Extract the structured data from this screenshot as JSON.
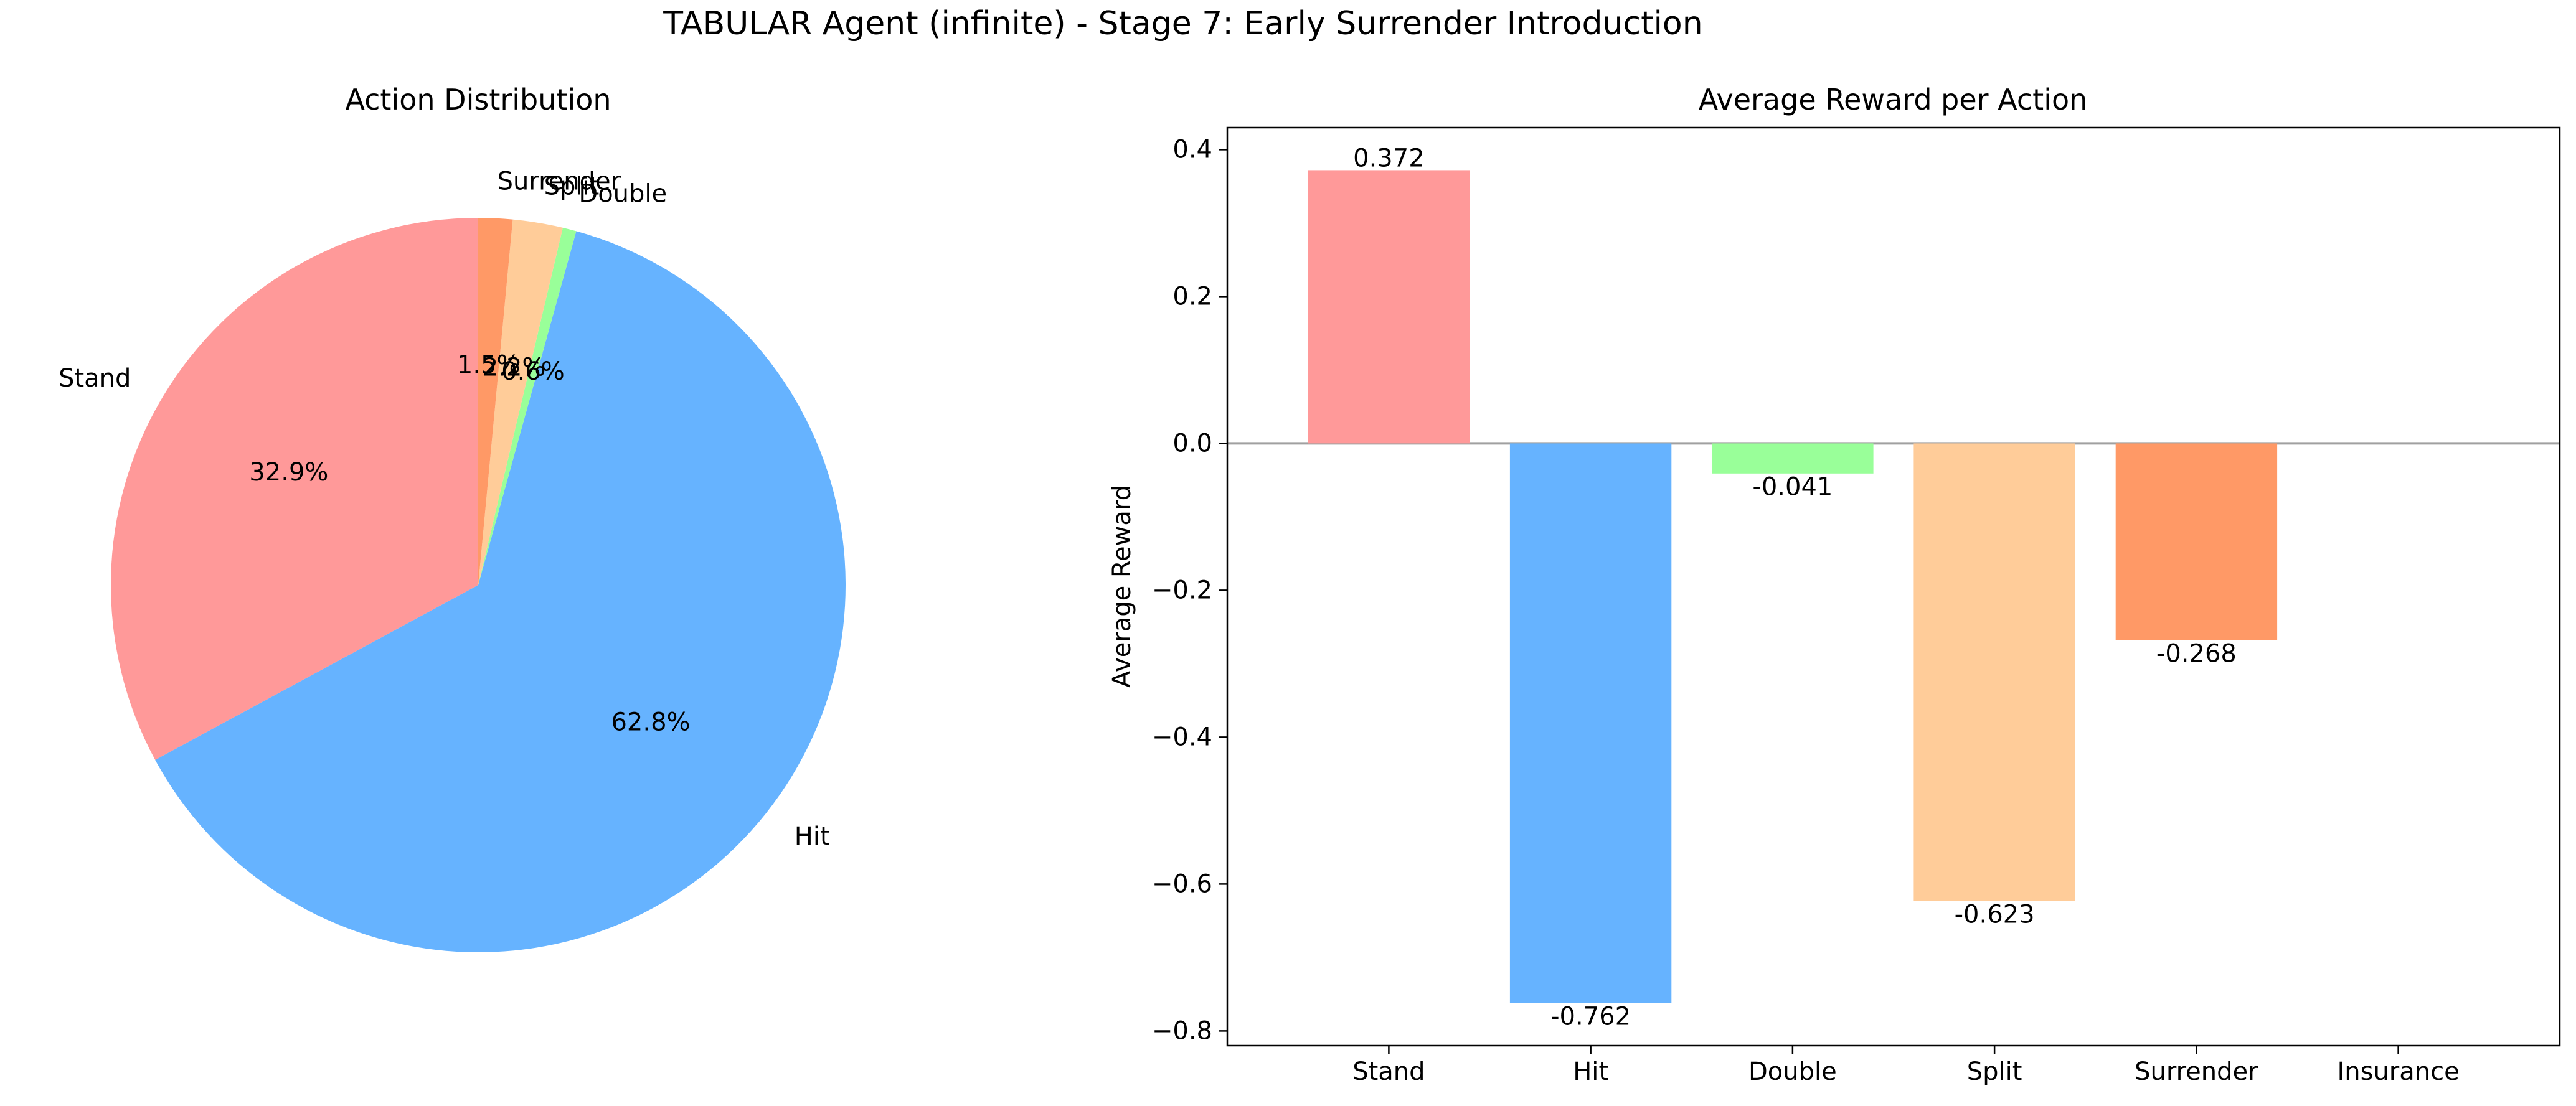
{
  "figure": {
    "title": "TABULAR Agent (infinite) - Stage 7: Early Surrender Introduction"
  },
  "colors": {
    "Stand": "#ff9999",
    "Hit": "#66b3ff",
    "Double": "#99ff99",
    "Split": "#ffcc99",
    "Surrender": "#ff9966",
    "zero_line": "#a0a0a0"
  },
  "chart_data": [
    {
      "type": "pie",
      "title": "Action Distribution",
      "start_angle_deg": 90,
      "direction": "counterclockwise",
      "slices": [
        {
          "label": "Stand",
          "value": 32.9,
          "pct_label": "32.9%"
        },
        {
          "label": "Hit",
          "value": 62.8,
          "pct_label": "62.8%"
        },
        {
          "label": "Double",
          "value": 0.6,
          "pct_label": "0.6%"
        },
        {
          "label": "Split",
          "value": 2.2,
          "pct_label": "2.2%"
        },
        {
          "label": "Surrender",
          "value": 1.5,
          "pct_label": "1.5%"
        }
      ]
    },
    {
      "type": "bar",
      "title": "Average Reward per Action",
      "xlabel": "",
      "ylabel": "Average Reward",
      "categories": [
        "Stand",
        "Hit",
        "Double",
        "Split",
        "Surrender",
        "Insurance"
      ],
      "values": [
        0.372,
        -0.762,
        -0.041,
        -0.623,
        -0.268,
        null
      ],
      "value_labels": [
        "0.372",
        "-0.762",
        "-0.041",
        "-0.623",
        "-0.268",
        ""
      ],
      "ylim": [
        -0.82,
        0.43
      ],
      "yticks": [
        0.4,
        0.2,
        0.0,
        -0.2,
        -0.4,
        -0.6,
        -0.8
      ],
      "ytick_labels": [
        "0.4",
        "0.2",
        "0.0",
        "−0.2",
        "−0.4",
        "−0.6",
        "−0.8"
      ],
      "grid": false,
      "zero_line": true
    }
  ]
}
